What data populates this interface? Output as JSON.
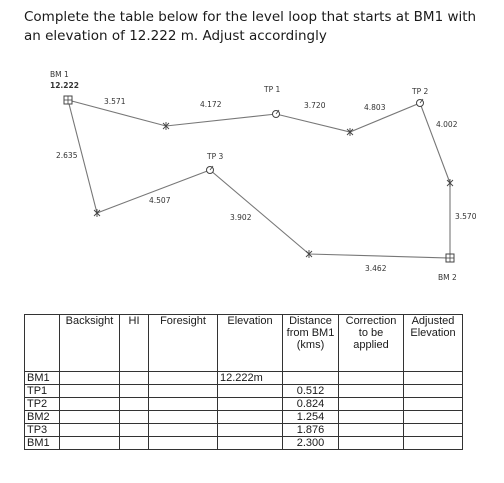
{
  "question": "Complete the table below for the level loop that starts at BM1 with an elevation of 12.222 m. Adjust accordingly",
  "diagram": {
    "stations": {
      "bm1_name": "BM 1",
      "bm1_elev": "12.222",
      "tp1": "TP 1",
      "tp2": "TP 2",
      "tp3": "TP 3",
      "bm2": "BM 2"
    },
    "readings": [
      "3.571",
      "4.172",
      "3.720",
      "4.803",
      "4.002",
      "3.570",
      "3.462",
      "3.902",
      "4.507",
      "2.635"
    ]
  },
  "table": {
    "headers": [
      "",
      "Backsight",
      "HI",
      "Foresight",
      "Elevation",
      "Distance from BM1 (kms)",
      "Correction to be applied",
      "Adjusted Elevation"
    ],
    "rows": [
      [
        "BM1",
        "",
        "",
        "",
        "12.222m",
        "",
        "",
        ""
      ],
      [
        "TP1",
        "",
        "",
        "",
        "",
        "0.512",
        "",
        ""
      ],
      [
        "TP2",
        "",
        "",
        "",
        "",
        "0.824",
        "",
        ""
      ],
      [
        "BM2",
        "",
        "",
        "",
        "",
        "1.254",
        "",
        ""
      ],
      [
        "TP3",
        "",
        "",
        "",
        "",
        "1.876",
        "",
        ""
      ],
      [
        "BM1",
        "",
        "",
        "",
        "",
        "2.300",
        "",
        ""
      ]
    ]
  }
}
